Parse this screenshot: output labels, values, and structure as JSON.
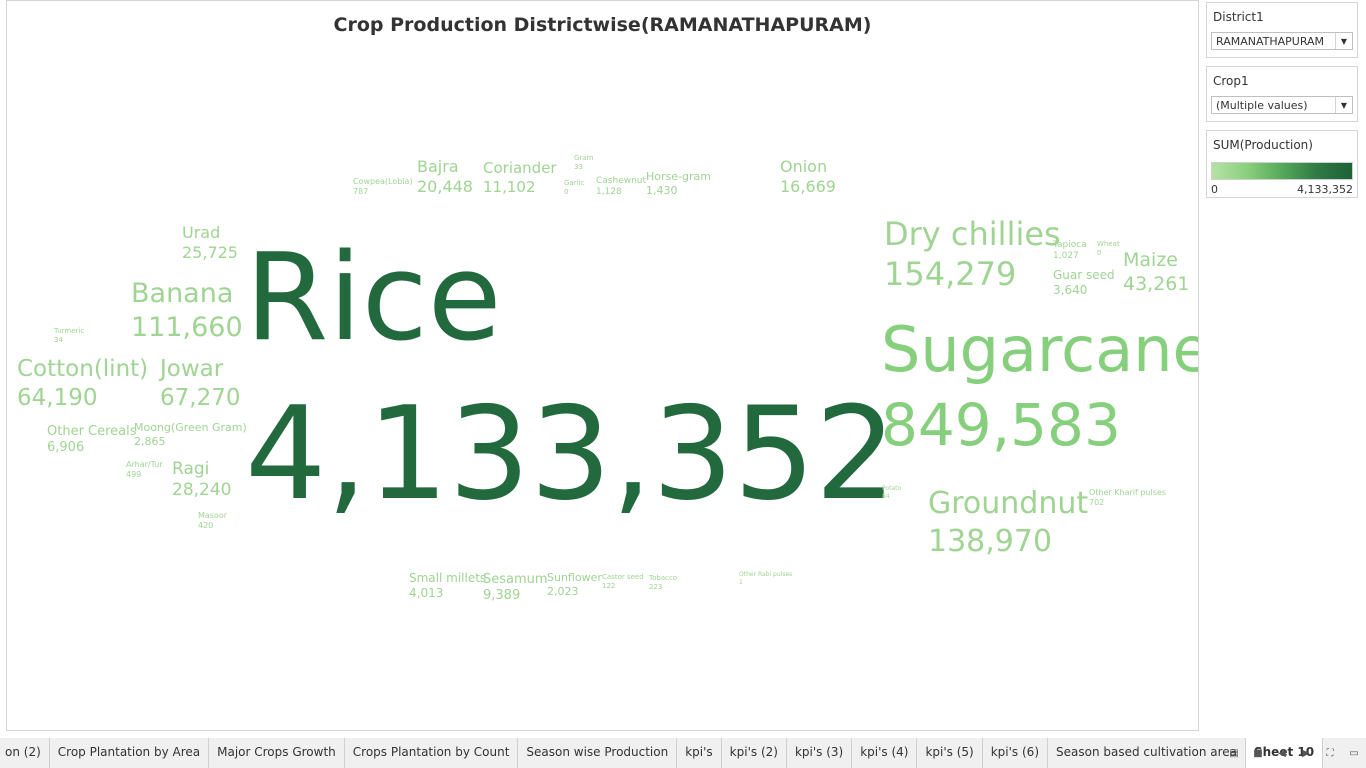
{
  "title": "Crop Production Districtwise(RAMANATHAPURAM)",
  "filters": {
    "district": {
      "label": "District1",
      "value": "RAMANATHAPURAM"
    },
    "crop": {
      "label": "Crop1",
      "value": "(Multiple values)"
    }
  },
  "legend": {
    "title": "SUM(Production)",
    "min": "0",
    "max": "4,133,352",
    "color_low": "#b5e3a5",
    "color_high": "#1d6236"
  },
  "words": [
    {
      "name": "Rice",
      "value": "4,133,352"
    },
    {
      "name": "Sugarcane",
      "value": "849,583"
    },
    {
      "name": "Dry chillies",
      "value": "154,279"
    },
    {
      "name": "Groundnut",
      "value": "138,970"
    },
    {
      "name": "Banana",
      "value": "111,660"
    },
    {
      "name": "Jowar",
      "value": "67,270"
    },
    {
      "name": "Cotton(lint)",
      "value": "64,190"
    },
    {
      "name": "Maize",
      "value": "43,261"
    },
    {
      "name": "Ragi",
      "value": "28,240"
    },
    {
      "name": "Urad",
      "value": "25,725"
    },
    {
      "name": "Bajra",
      "value": "20,448"
    },
    {
      "name": "Onion",
      "value": "16,669"
    },
    {
      "name": "Coriander",
      "value": "11,102"
    },
    {
      "name": "Sesamum",
      "value": "9,389"
    },
    {
      "name": "Other Cereals",
      "value": "6,906"
    },
    {
      "name": "Small millets",
      "value": "4,013"
    },
    {
      "name": "Guar seed",
      "value": "3,640"
    },
    {
      "name": "Moong(Green Gram)",
      "value": "2,865"
    },
    {
      "name": "Sunflower",
      "value": "2,023"
    },
    {
      "name": "Horse-gram",
      "value": "1,430"
    },
    {
      "name": "Cashewnut",
      "value": "1,128"
    },
    {
      "name": "Tapioca",
      "value": "1,027"
    },
    {
      "name": "Cowpea(Lobia)",
      "value": "787"
    },
    {
      "name": "Other Kharif pulses",
      "value": "702"
    },
    {
      "name": "Arhar/Tur",
      "value": "499"
    },
    {
      "name": "Masoor",
      "value": "420"
    },
    {
      "name": "Tobacco",
      "value": "223"
    },
    {
      "name": "Castor seed",
      "value": "122"
    },
    {
      "name": "Potato",
      "value": "84"
    },
    {
      "name": "Turmeric",
      "value": "34"
    },
    {
      "name": "Gram",
      "value": "33"
    },
    {
      "name": "Garlic",
      "value": "0"
    },
    {
      "name": "Wheat",
      "value": "0"
    },
    {
      "name": "Other Rabi pulses",
      "value": "1"
    }
  ],
  "tabs": [
    {
      "label": "on (2)"
    },
    {
      "label": "Crop Plantation by Area"
    },
    {
      "label": "Major Crops Growth"
    },
    {
      "label": "Crops Plantation by Count"
    },
    {
      "label": "Season wise Production"
    },
    {
      "label": "kpi's"
    },
    {
      "label": "kpi's (2)"
    },
    {
      "label": "kpi's (3)"
    },
    {
      "label": "kpi's (4)"
    },
    {
      "label": "kpi's (5)"
    },
    {
      "label": "kpi's (6)"
    },
    {
      "label": "Season based cultivation area"
    },
    {
      "label": "Sheet 10"
    }
  ],
  "active_tab": "Sheet 10",
  "tab_controls": [
    {
      "icon": "show-filmstrip-icon"
    },
    {
      "icon": "show-sheet-sorter-icon"
    },
    {
      "icon": "previous-sheet-icon"
    },
    {
      "icon": "next-sheet-icon"
    },
    {
      "icon": "fullscreen-icon"
    },
    {
      "icon": "presentation-mode-icon"
    }
  ]
}
